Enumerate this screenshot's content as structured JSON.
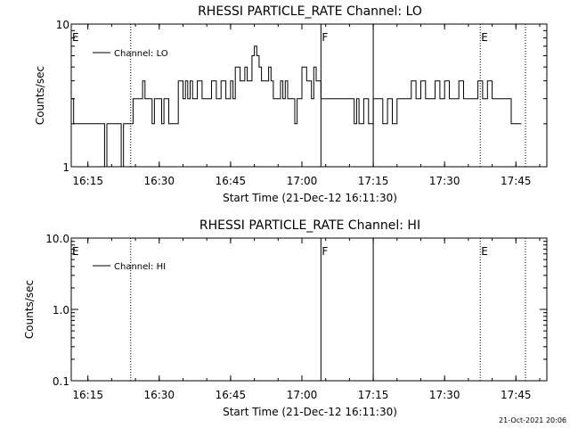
{
  "chart_data": [
    {
      "type": "line",
      "title": "RHESSI PARTICLE_RATE Channel: LO",
      "xlabel": "Start Time (21-Dec-12 16:11:30)",
      "ylabel": "Counts/sec",
      "yscale": "log",
      "ylim": [
        1,
        10
      ],
      "ytick_labels": [
        "1",
        "10"
      ],
      "xlim": [
        "16:11:30",
        "17:51:30"
      ],
      "xtick_labels": [
        "16:15",
        "16:30",
        "16:45",
        "17:00",
        "17:15",
        "17:30",
        "17:45"
      ],
      "legend": {
        "entries": [
          "Channel: LO"
        ],
        "placement": "top-left"
      },
      "markers": [
        {
          "label": "E",
          "time": "16:11:30",
          "style": "none"
        },
        {
          "label": "",
          "time": "16:24:00",
          "style": "dotted"
        },
        {
          "label": "F",
          "time": "17:04:00",
          "style": "solid"
        },
        {
          "label": "",
          "time": "17:15:00",
          "style": "solid"
        },
        {
          "label": "E",
          "time": "17:37:30",
          "style": "dotted"
        },
        {
          "label": "",
          "time": "17:47:00",
          "style": "dotted"
        }
      ],
      "series": [
        {
          "name": "Channel: LO",
          "x": [
            "16:11:30",
            "16:12:00",
            "16:12:30",
            "16:13:00",
            "16:16:00",
            "16:18:00",
            "16:18:30",
            "16:19:00",
            "16:20:00",
            "16:22:00",
            "16:22:30",
            "16:23:30",
            "16:24:00",
            "16:24:30",
            "16:26:00",
            "16:26:30",
            "16:27:00",
            "16:28:00",
            "16:28:30",
            "16:29:00",
            "16:30:00",
            "16:30:30",
            "16:31:00",
            "16:31:30",
            "16:32:00",
            "16:33:00",
            "16:34:00",
            "16:35:00",
            "16:35:30",
            "16:36:00",
            "16:36:30",
            "16:37:00",
            "16:37:30",
            "16:38:00",
            "16:39:00",
            "16:40:00",
            "16:41:00",
            "16:42:00",
            "16:42:30",
            "16:43:00",
            "16:44:00",
            "16:45:00",
            "16:45:30",
            "16:46:00",
            "16:47:00",
            "16:48:00",
            "16:48:30",
            "16:49:00",
            "16:49:30",
            "16:50:00",
            "16:50:30",
            "16:51:00",
            "16:51:30",
            "16:52:00",
            "16:53:00",
            "16:53:30",
            "16:54:00",
            "16:55:00",
            "16:55:30",
            "16:56:00",
            "16:56:30",
            "16:57:00",
            "16:58:00",
            "16:58:30",
            "16:59:00",
            "17:00:00",
            "17:01:00",
            "17:02:00",
            "17:02:30",
            "17:03:00",
            "17:04:00",
            "17:05:00",
            "17:06:00",
            "17:06:30",
            "17:07:00",
            "17:08:00",
            "17:08:30",
            "17:09:00",
            "17:10:00",
            "17:11:00",
            "17:11:30",
            "17:12:00",
            "17:13:00",
            "17:14:00",
            "17:15:00",
            "17:16:00",
            "17:17:00",
            "17:18:00",
            "17:19:00",
            "17:20:00",
            "17:21:00",
            "17:22:00",
            "17:23:00",
            "17:24:00",
            "17:25:00",
            "17:26:00",
            "17:27:00",
            "17:28:00",
            "17:29:00",
            "17:30:00",
            "17:31:00",
            "17:32:00",
            "17:33:00",
            "17:34:00",
            "17:35:00",
            "17:36:00",
            "17:37:00",
            "17:38:00",
            "17:39:00",
            "17:40:00",
            "17:41:00",
            "17:42:00",
            "17:43:00",
            "17:44:00",
            "17:45:00"
          ],
          "values": [
            3,
            2,
            2,
            2,
            2,
            2,
            1,
            2,
            2,
            1,
            2,
            2,
            2,
            3,
            3,
            4,
            3,
            3,
            2,
            3,
            3,
            2,
            3,
            3,
            2,
            2,
            4,
            3,
            4,
            3,
            4,
            3,
            3,
            4,
            3,
            3,
            4,
            3,
            3,
            4,
            3,
            4,
            3,
            5,
            4,
            5,
            4,
            4,
            6,
            7,
            6,
            5,
            4,
            4,
            5,
            4,
            3,
            3,
            4,
            3,
            4,
            3,
            3,
            2,
            3,
            5,
            4,
            3,
            5,
            4,
            3,
            3,
            3,
            3,
            3,
            3,
            3,
            3,
            3,
            2,
            3,
            2,
            3,
            2,
            3,
            3,
            2,
            3,
            2,
            3,
            3,
            3,
            4,
            3,
            4,
            3,
            3,
            4,
            3,
            4,
            3,
            3,
            4,
            3,
            3,
            3,
            4,
            3,
            4,
            3,
            3,
            3,
            3,
            2,
            2
          ]
        }
      ]
    },
    {
      "type": "line",
      "title": "RHESSI PARTICLE_RATE Channel: HI",
      "xlabel": "Start Time (21-Dec-12 16:11:30)",
      "ylabel": "Counts/sec",
      "yscale": "log",
      "ylim": [
        0.1,
        10
      ],
      "ytick_labels": [
        "0.1",
        "1.0",
        "10.0"
      ],
      "xlim": [
        "16:11:30",
        "17:51:30"
      ],
      "xtick_labels": [
        "16:15",
        "16:30",
        "16:45",
        "17:00",
        "17:15",
        "17:30",
        "17:45"
      ],
      "legend": {
        "entries": [
          "Channel: HI"
        ],
        "placement": "top-left"
      },
      "markers": [
        {
          "label": "E",
          "time": "16:11:30",
          "style": "none"
        },
        {
          "label": "",
          "time": "16:24:00",
          "style": "dotted"
        },
        {
          "label": "F",
          "time": "17:04:00",
          "style": "solid"
        },
        {
          "label": "",
          "time": "17:15:00",
          "style": "solid"
        },
        {
          "label": "E",
          "time": "17:37:30",
          "style": "dotted"
        },
        {
          "label": "",
          "time": "17:47:00",
          "style": "dotted"
        }
      ],
      "series": [
        {
          "name": "Channel: HI",
          "x": [],
          "values": []
        }
      ]
    }
  ],
  "footer": {
    "timestamp": "21-Oct-2021 20:06"
  }
}
